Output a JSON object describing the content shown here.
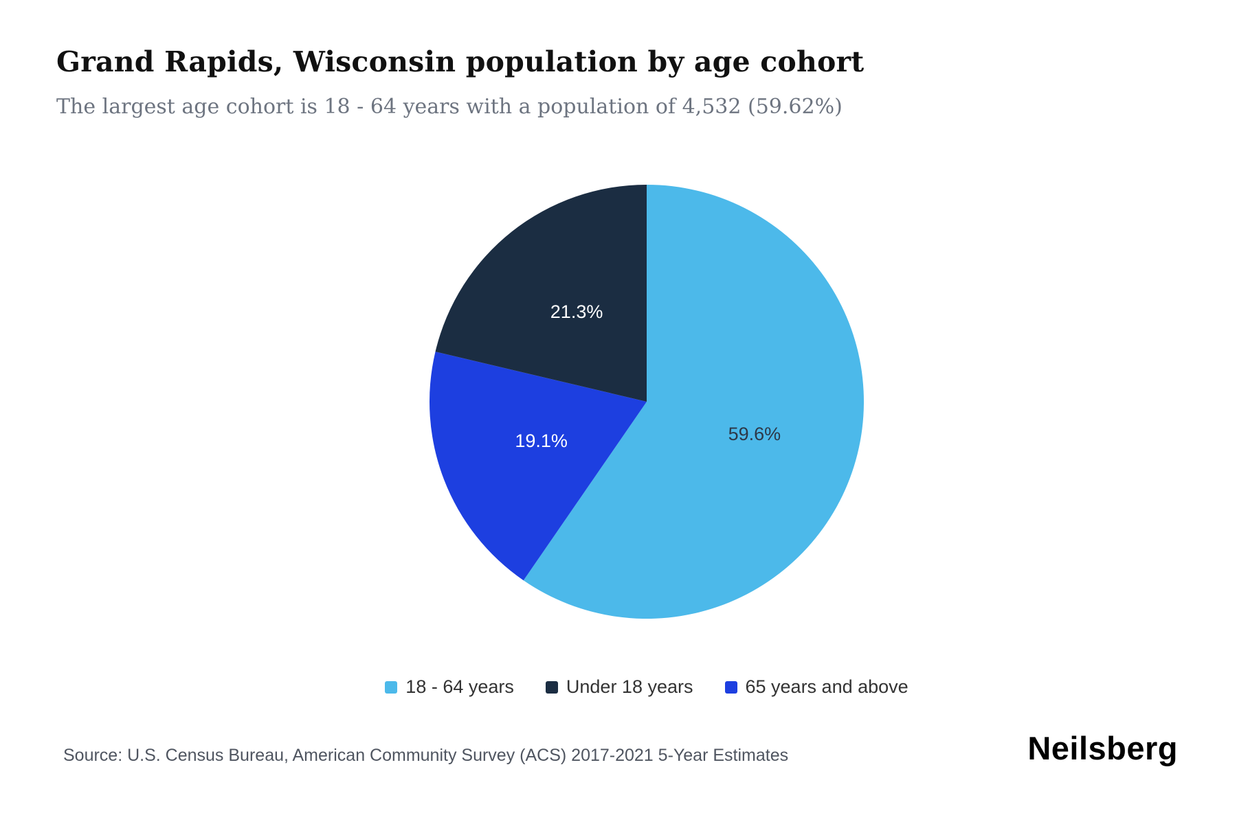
{
  "header": {
    "title": "Grand Rapids, Wisconsin population by age cohort",
    "subtitle": "The largest age cohort is 18 - 64 years with a population of 4,532 (59.62%)"
  },
  "chart_data": {
    "type": "pie",
    "title": "Grand Rapids, Wisconsin population by age cohort",
    "start_angle_deg": 0,
    "direction": "clockwise",
    "legend_position": "bottom",
    "series": [
      {
        "name": "18 - 64 years",
        "value": 59.6,
        "label": "59.6%",
        "color": "#4cb9ea",
        "label_color": "#2d3848"
      },
      {
        "name": "65 years and above",
        "value": 19.1,
        "label": "19.1%",
        "color": "#1d3fe0",
        "label_color": "#ffffff"
      },
      {
        "name": "Under 18 years",
        "value": 21.3,
        "label": "21.3%",
        "color": "#1b2d42",
        "label_color": "#ffffff"
      }
    ],
    "legend": [
      {
        "label": "18 - 64 years",
        "color": "#4cb9ea"
      },
      {
        "label": "Under 18 years",
        "color": "#1b2d42"
      },
      {
        "label": "65 years and above",
        "color": "#1d3fe0"
      }
    ]
  },
  "footer": {
    "source": "Source: U.S. Census Bureau, American Community Survey (ACS) 2017-2021 5-Year Estimates",
    "brand": "Neilsberg"
  }
}
